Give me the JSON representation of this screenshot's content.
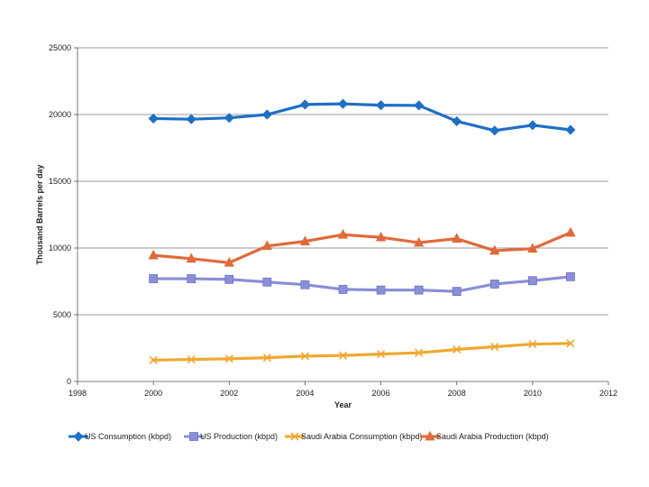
{
  "chart_data": {
    "type": "line",
    "title": "",
    "xlabel": "Year",
    "ylabel": "Thousand Barrels per day",
    "xlim": [
      1998,
      2012
    ],
    "ylim": [
      0,
      25000
    ],
    "x_ticks": [
      1998,
      2000,
      2002,
      2004,
      2006,
      2008,
      2010,
      2012
    ],
    "y_ticks": [
      0,
      5000,
      10000,
      15000,
      20000,
      25000
    ],
    "grid": "horizontal",
    "legend_position": "bottom",
    "x": [
      2000,
      2001,
      2002,
      2003,
      2004,
      2005,
      2006,
      2007,
      2008,
      2009,
      2010,
      2011
    ],
    "series": [
      {
        "name": "US Consumption (kbpd)",
        "color": "#1f6fc5",
        "marker": "diamond",
        "values": [
          19700,
          19650,
          19750,
          20000,
          20750,
          20800,
          20700,
          20680,
          19500,
          18800,
          19200,
          18850
        ]
      },
      {
        "name": "US Production (kbpd)",
        "color": "#8b8fd8",
        "marker": "square",
        "values": [
          7700,
          7700,
          7650,
          7450,
          7250,
          6900,
          6850,
          6850,
          6750,
          7300,
          7550,
          7850
        ]
      },
      {
        "name": "Saudi Arabia Consumption (kbpd)",
        "color": "#f0a830",
        "marker": "x",
        "values": [
          1600,
          1650,
          1700,
          1780,
          1900,
          1950,
          2050,
          2150,
          2400,
          2600,
          2800,
          2850
        ]
      },
      {
        "name": "Saudi Arabia Production (kbpd)",
        "color": "#e06a3a",
        "marker": "triangle",
        "values": [
          9450,
          9200,
          8900,
          10150,
          10500,
          11000,
          10800,
          10400,
          10700,
          9800,
          9950,
          11150
        ]
      }
    ]
  }
}
